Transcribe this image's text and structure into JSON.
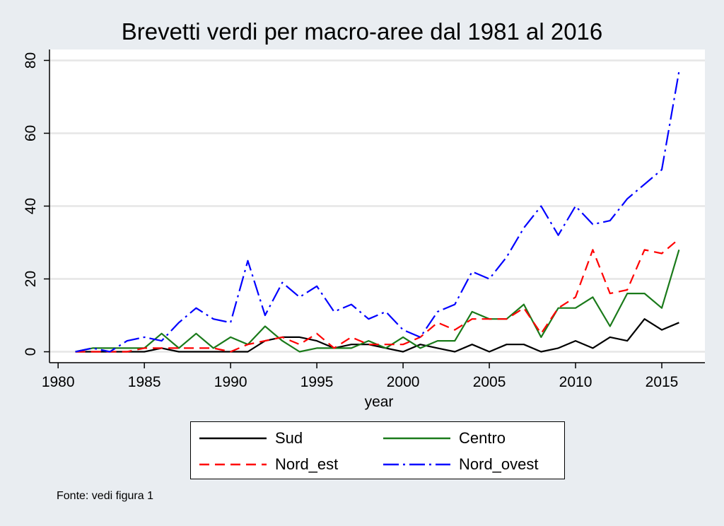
{
  "chart_data": {
    "type": "line",
    "title": "Brevetti verdi per macro-aree dal 1981 al 2016",
    "xlabel": "year",
    "ylabel": "",
    "xlim": [
      1979.5,
      2017.5
    ],
    "ylim": [
      -3,
      83
    ],
    "xticks": [
      1980,
      1985,
      1990,
      1995,
      2000,
      2005,
      2010,
      2015
    ],
    "yticks": [
      0,
      20,
      40,
      60,
      80
    ],
    "grid": true,
    "legend_position": "bottom",
    "x": [
      1981,
      1982,
      1983,
      1984,
      1985,
      1986,
      1987,
      1988,
      1989,
      1990,
      1991,
      1992,
      1993,
      1994,
      1995,
      1996,
      1997,
      1998,
      1999,
      2000,
      2001,
      2002,
      2003,
      2004,
      2005,
      2006,
      2007,
      2008,
      2009,
      2010,
      2011,
      2012,
      2013,
      2014,
      2015,
      2016
    ],
    "series": [
      {
        "name": "Sud",
        "color": "#000000",
        "dash": "solid",
        "values": [
          0,
          0,
          0,
          0,
          0,
          1,
          0,
          0,
          0,
          0,
          0,
          3,
          4,
          4,
          3,
          1,
          2,
          2,
          1,
          0,
          2,
          1,
          0,
          2,
          0,
          2,
          2,
          0,
          1,
          3,
          1,
          4,
          3,
          9,
          6,
          8
        ]
      },
      {
        "name": "Centro",
        "color": "#1a7a1a",
        "dash": "solid",
        "values": [
          0,
          1,
          1,
          1,
          1,
          5,
          1,
          5,
          1,
          4,
          2,
          7,
          3,
          0,
          1,
          1,
          1,
          3,
          1,
          4,
          1,
          3,
          3,
          11,
          9,
          9,
          13,
          4,
          12,
          12,
          15,
          7,
          16,
          16,
          12,
          28
        ]
      },
      {
        "name": "Nord_est",
        "color": "#ff0000",
        "dash": "dashed",
        "values": [
          0,
          0,
          0,
          0,
          1,
          1,
          1,
          1,
          1,
          0,
          2,
          3,
          4,
          2,
          5,
          1,
          4,
          2,
          2,
          2,
          4,
          8,
          6,
          9,
          9,
          9,
          12,
          5,
          12,
          15,
          28,
          16,
          17,
          28,
          27,
          31
        ]
      },
      {
        "name": "Nord_ovest",
        "color": "#0000ff",
        "dash": "dashdot",
        "values": [
          0,
          1,
          0,
          3,
          4,
          3,
          8,
          12,
          9,
          8,
          25,
          10,
          19,
          15,
          18,
          11,
          13,
          9,
          11,
          6,
          4,
          11,
          13,
          22,
          20,
          26,
          34,
          40,
          32,
          40,
          35,
          36,
          42,
          46,
          50,
          77
        ]
      }
    ]
  },
  "note": "Fonte: vedi figura 1"
}
